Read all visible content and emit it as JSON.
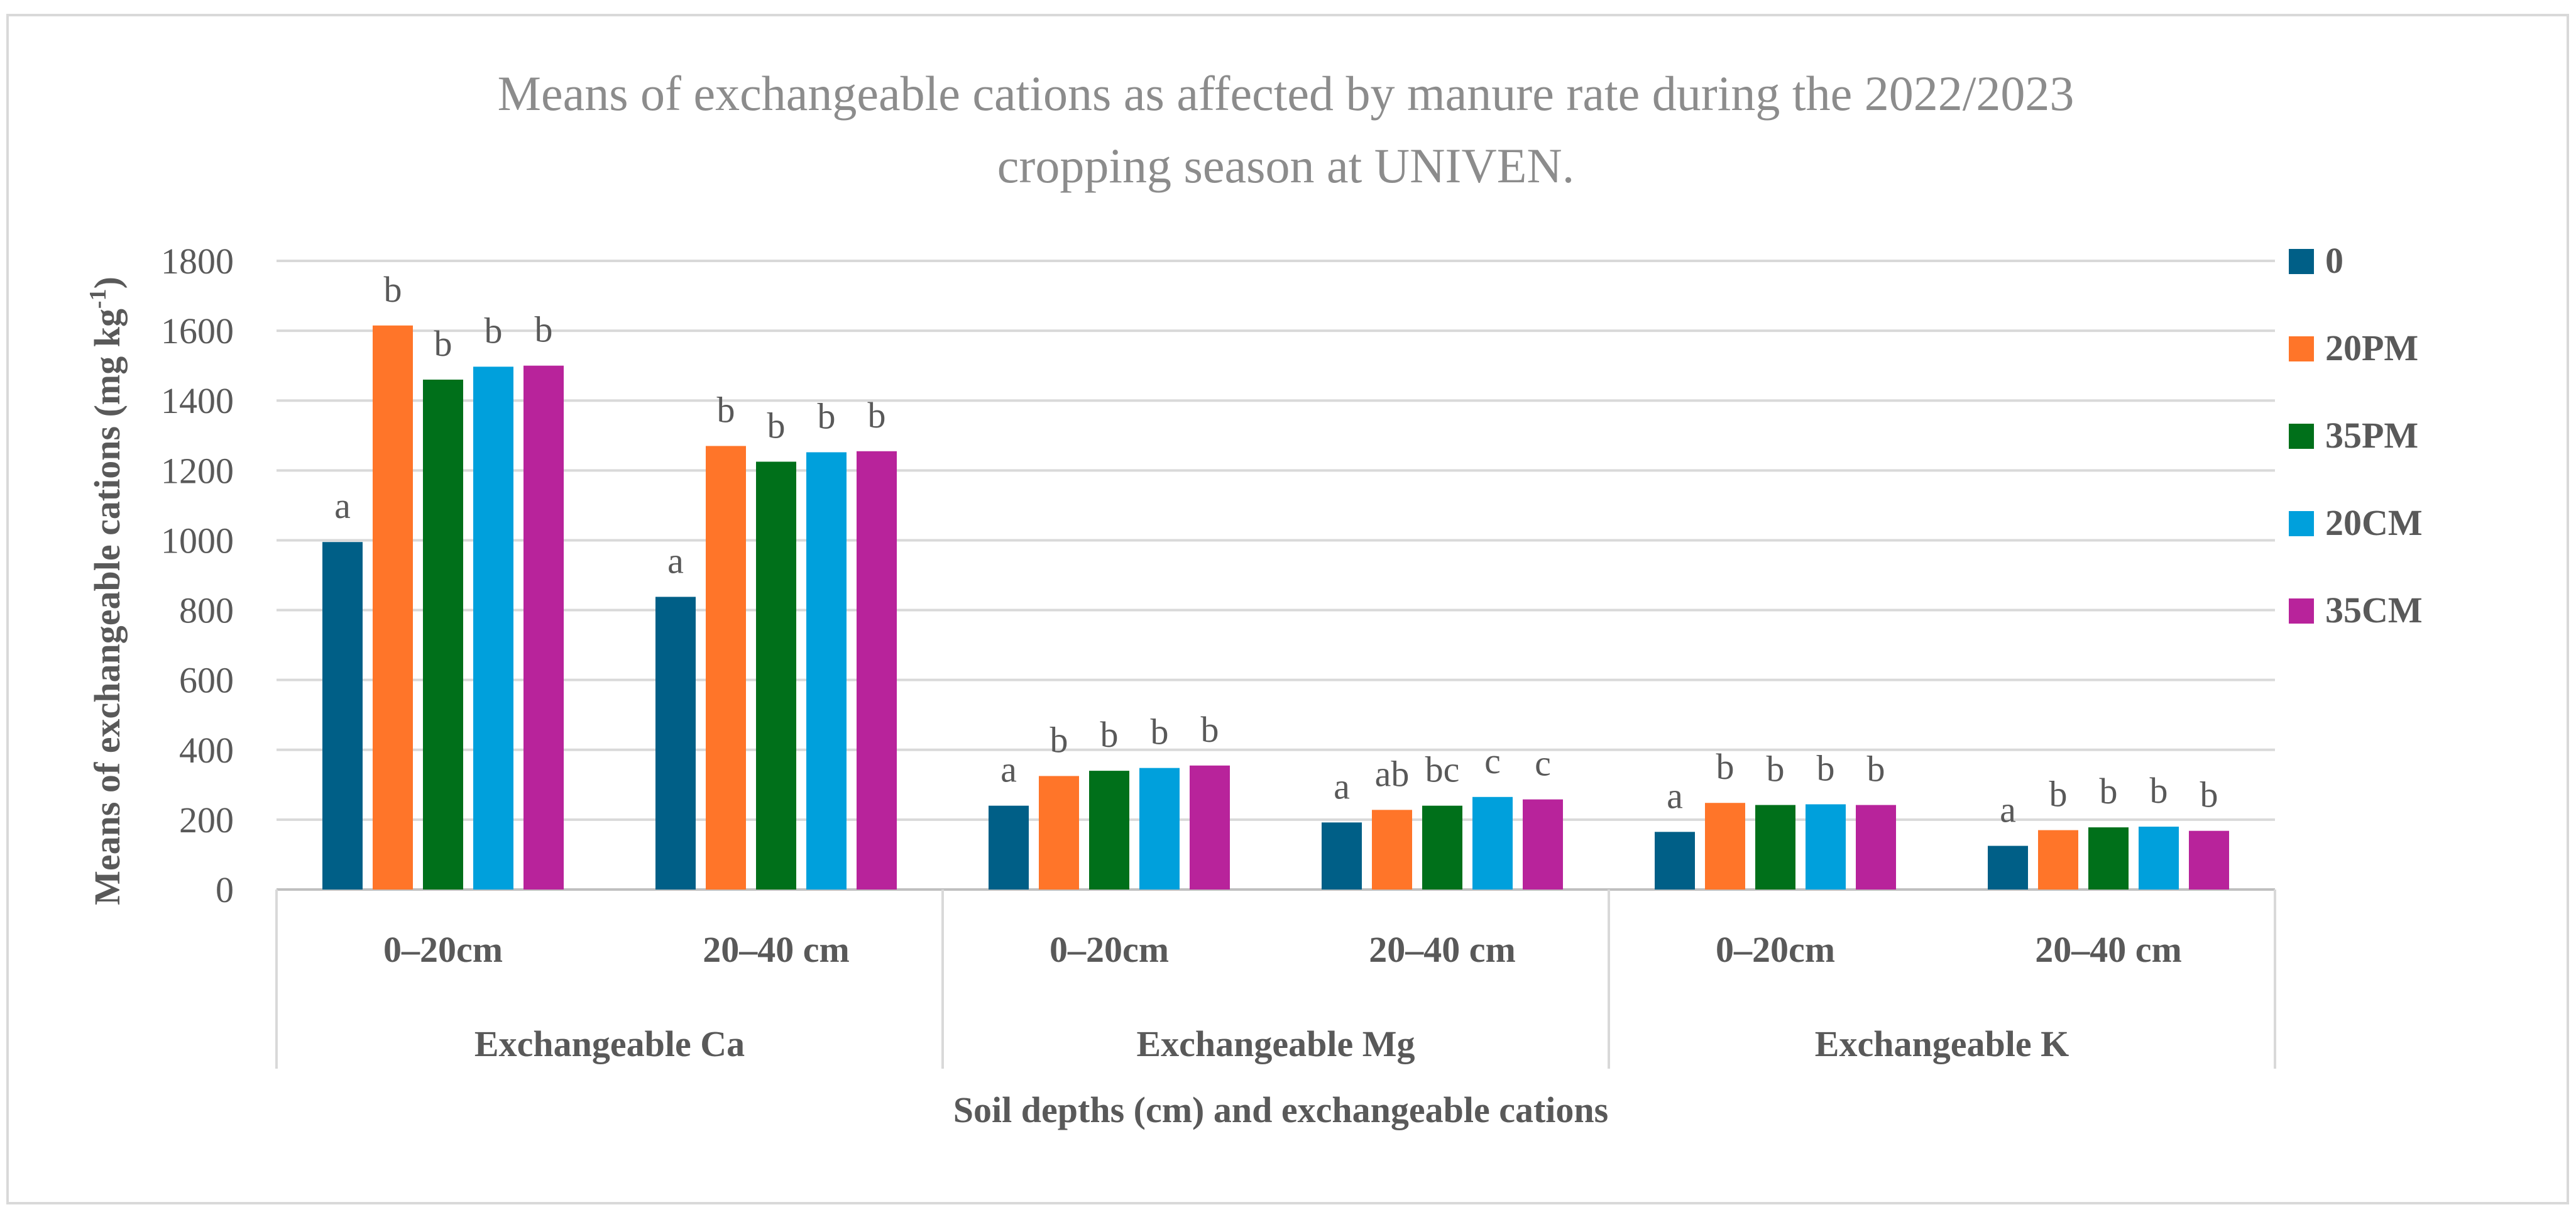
{
  "chart_data": {
    "type": "bar",
    "title_lines": [
      "Means of exchangeable cations as affected by manure rate during the 2022/2023",
      "cropping season at UNIVEN."
    ],
    "ylabel": "Means of exchangeable cations (mg kg",
    "ylabel_superscript": "-1",
    "ylabel_close": ")",
    "xlabel": "Soil depths (cm) and exchangeable cations",
    "ylim": [
      0,
      1800
    ],
    "yticks": [
      0,
      200,
      400,
      600,
      800,
      1000,
      1200,
      1400,
      1600,
      1800
    ],
    "groups": [
      {
        "label": "Exchangeable Ca",
        "categories": [
          "0–20cm",
          "20–40 cm"
        ]
      },
      {
        "label": "Exchangeable Mg",
        "categories": [
          "0–20cm",
          "20–40 cm"
        ]
      },
      {
        "label": "Exchangeable K",
        "categories": [
          "0–20cm",
          "20–40 cm"
        ]
      }
    ],
    "series": [
      {
        "name": "0",
        "color": "#005f87",
        "values": [
          995,
          838,
          240,
          192,
          165,
          125
        ],
        "labels": [
          "a",
          "a",
          "a",
          "a",
          "a",
          "a"
        ]
      },
      {
        "name": "20PM",
        "color": "#ff7529",
        "values": [
          1615,
          1270,
          325,
          228,
          248,
          170
        ],
        "labels": [
          "b",
          "b",
          "b",
          "ab",
          "b",
          "b"
        ]
      },
      {
        "name": "35PM",
        "color": "#00701a",
        "values": [
          1460,
          1225,
          340,
          240,
          242,
          178
        ],
        "labels": [
          "b",
          "b",
          "b",
          "bc",
          "b",
          "b"
        ]
      },
      {
        "name": "20CM",
        "color": "#00a0dc",
        "values": [
          1497,
          1252,
          348,
          265,
          244,
          180
        ],
        "labels": [
          "b",
          "b",
          "b",
          "c",
          "b",
          "b"
        ]
      },
      {
        "name": "35CM",
        "color": "#b8239b",
        "values": [
          1500,
          1255,
          355,
          258,
          242,
          168
        ],
        "labels": [
          "b",
          "b",
          "b",
          "c",
          "b",
          "b"
        ]
      }
    ]
  }
}
